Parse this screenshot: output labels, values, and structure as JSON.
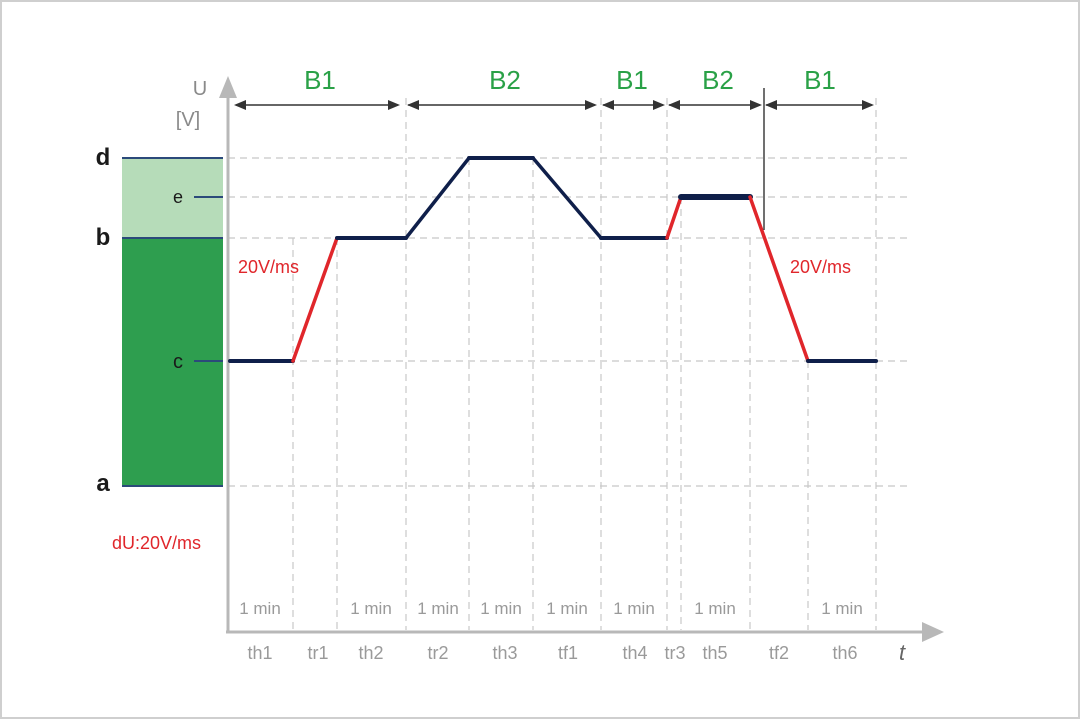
{
  "axis": {
    "y_label": "U",
    "y_unit": "[V]",
    "x_label": "t"
  },
  "levels": {
    "a": "a",
    "b": "b",
    "c": "c",
    "d": "d",
    "e": "e"
  },
  "bands": [
    "B1",
    "B2",
    "B1",
    "B2",
    "B1"
  ],
  "phases": [
    "th1",
    "tr1",
    "th2",
    "tr2",
    "th3",
    "tf1",
    "th4",
    "tr3",
    "th5",
    "tf2",
    "th6"
  ],
  "durations": [
    "1 min",
    "1 min",
    "1 min",
    "1 min",
    "1 min",
    "1 min",
    "1 min",
    "1 min"
  ],
  "slope_labels": [
    "20V/ms",
    "20V/ms"
  ],
  "slope_note": "dU:20V/ms",
  "colors": {
    "band_dark": "#2e9e4f",
    "band_light": "#b6dcb9",
    "hold_line": "#0f1f4a",
    "ramp_line": "#e0262b",
    "band_label": "#2aa147"
  }
}
